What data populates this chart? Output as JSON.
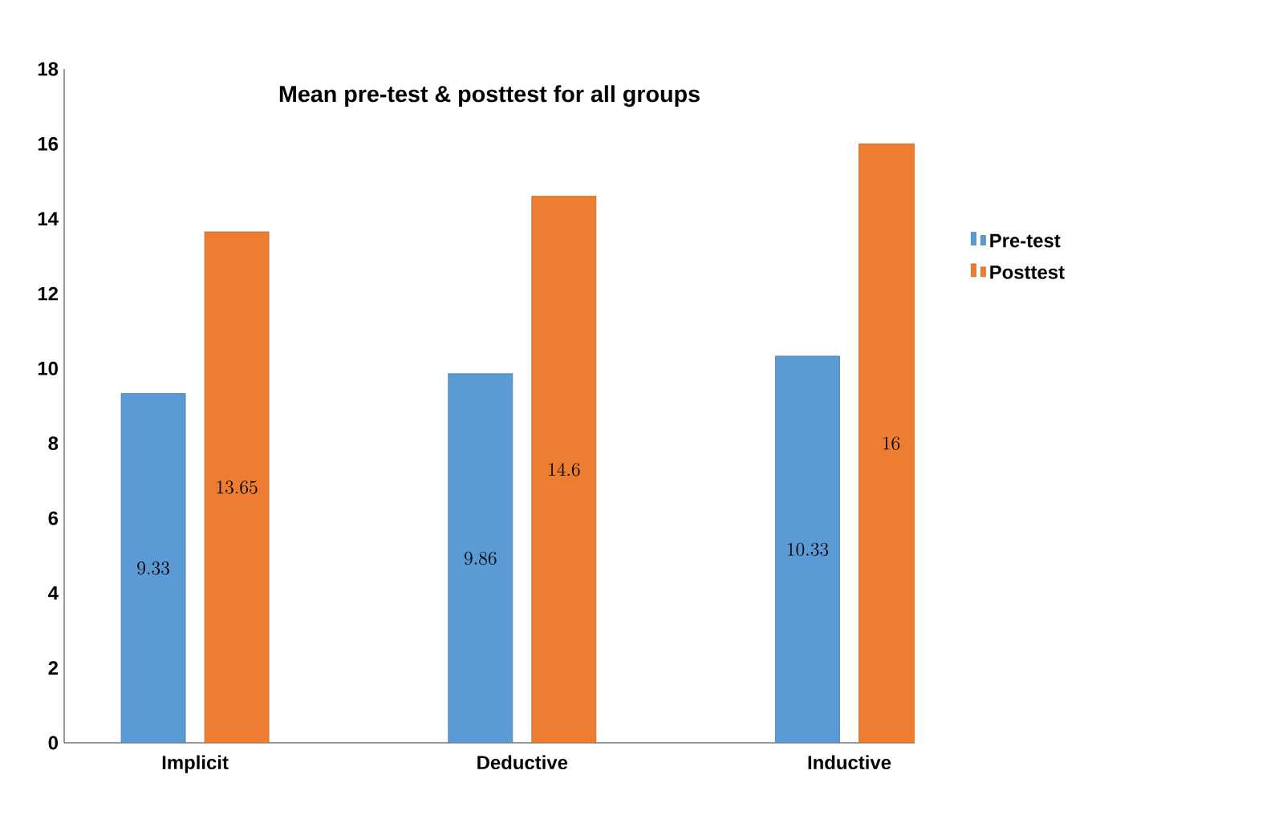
{
  "chart_data": {
    "type": "bar",
    "title": "Mean pre-test & posttest for all groups",
    "categories": [
      "Implicit",
      "Deductive",
      "Inductive"
    ],
    "series": [
      {
        "name": "Pre-test",
        "color": "#5b9bd5",
        "values": [
          9.33,
          9.86,
          10.33
        ]
      },
      {
        "name": "Posttest",
        "color": "#ed7d31",
        "values": [
          13.65,
          14.6,
          16
        ]
      }
    ],
    "ylim": [
      0,
      18
    ],
    "yticks": [
      0,
      2,
      4,
      6,
      8,
      10,
      12,
      14,
      16,
      18
    ],
    "data_labels": true,
    "legend": "right",
    "grid": false
  }
}
